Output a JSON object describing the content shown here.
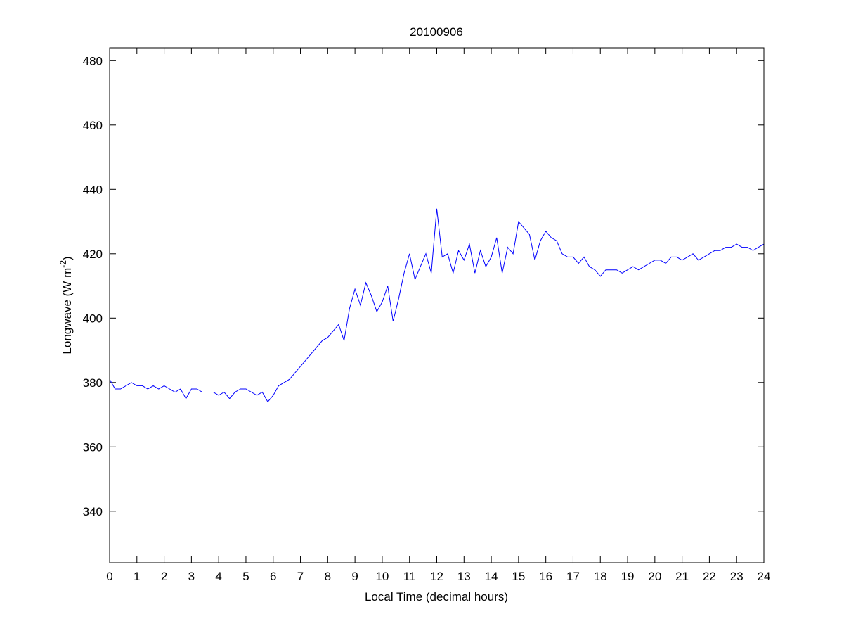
{
  "chart_data": {
    "type": "line",
    "title": "20100906",
    "xlabel": "Local Time (decimal hours)",
    "ylabel": "Longwave (W m",
    "ylabel_sup": "-2",
    "ylabel_close": ")",
    "xlim": [
      0,
      24
    ],
    "ylim": [
      324,
      484
    ],
    "xticks": [
      0,
      1,
      2,
      3,
      4,
      5,
      6,
      7,
      8,
      9,
      10,
      11,
      12,
      13,
      14,
      15,
      16,
      17,
      18,
      19,
      20,
      21,
      22,
      23,
      24
    ],
    "yticks": [
      340,
      360,
      380,
      400,
      420,
      440,
      460,
      480
    ],
    "grid": false,
    "line_color": "#0000ff",
    "series": [
      {
        "x": [
          0,
          0.2,
          0.4,
          0.6,
          0.8,
          1,
          1.2,
          1.4,
          1.6,
          1.8,
          2,
          2.2,
          2.4,
          2.6,
          2.8,
          3,
          3.2,
          3.4,
          3.6,
          3.8,
          4,
          4.2,
          4.4,
          4.6,
          4.8,
          5,
          5.2,
          5.4,
          5.6,
          5.8,
          6,
          6.2,
          6.4,
          6.6,
          6.8,
          7,
          7.2,
          7.4,
          7.6,
          7.8,
          8,
          8.2,
          8.4,
          8.6,
          8.8,
          9,
          9.2,
          9.4,
          9.6,
          9.8,
          10,
          10.2,
          10.4,
          10.6,
          10.8,
          11,
          11.2,
          11.4,
          11.6,
          11.8,
          12,
          12.2,
          12.4,
          12.6,
          12.8,
          13,
          13.2,
          13.4,
          13.6,
          13.8,
          14,
          14.2,
          14.4,
          14.6,
          14.8,
          15,
          15.2,
          15.4,
          15.6,
          15.8,
          16,
          16.2,
          16.4,
          16.6,
          16.8,
          17,
          17.2,
          17.4,
          17.6,
          17.8,
          18,
          18.2,
          18.4,
          18.6,
          18.8,
          19,
          19.2,
          19.4,
          19.6,
          19.8,
          20,
          20.2,
          20.4,
          20.6,
          20.8,
          21,
          21.2,
          21.4,
          21.6,
          21.8,
          22,
          22.2,
          22.4,
          22.6,
          22.8,
          23,
          23.2,
          23.4,
          23.6,
          23.8,
          24
        ],
        "y": [
          381,
          378,
          378,
          379,
          380,
          379,
          379,
          378,
          379,
          378,
          379,
          378,
          377,
          378,
          375,
          378,
          378,
          377,
          377,
          377,
          376,
          377,
          375,
          377,
          378,
          378,
          377,
          376,
          377,
          374,
          376,
          379,
          380,
          381,
          383,
          385,
          387,
          389,
          391,
          393,
          394,
          396,
          398,
          393,
          403,
          409,
          404,
          411,
          407,
          402,
          405,
          410,
          399,
          406,
          414,
          420,
          412,
          416,
          420,
          414,
          434,
          419,
          420,
          414,
          421,
          418,
          423,
          414,
          421,
          416,
          419,
          425,
          414,
          422,
          420,
          430,
          428,
          426,
          418,
          424,
          427,
          425,
          424,
          420,
          419,
          419,
          417,
          419,
          416,
          415,
          413,
          415,
          415,
          415,
          414,
          415,
          416,
          415,
          416,
          417,
          418,
          418,
          417,
          419,
          419,
          418,
          419,
          420,
          418,
          419,
          420,
          421,
          421,
          422,
          422,
          423,
          422,
          422,
          421,
          422,
          423
        ]
      }
    ]
  }
}
